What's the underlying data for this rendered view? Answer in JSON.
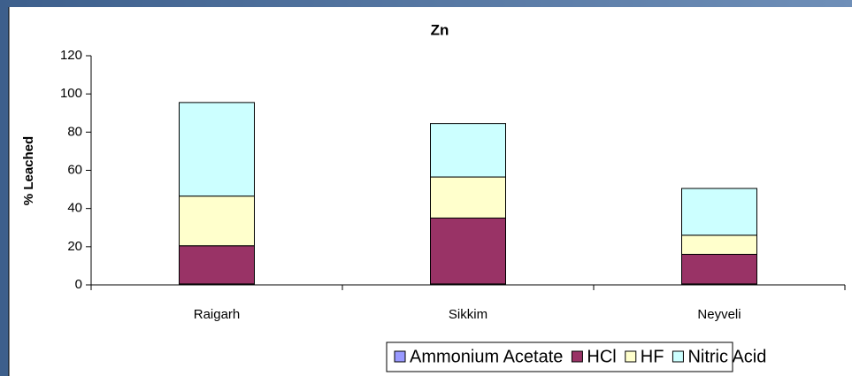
{
  "chart_data": {
    "type": "stacked_bar",
    "title": "Zn",
    "y_label": "% Leached",
    "categories": [
      "Raigarh",
      "Sikkim",
      "Neyveli"
    ],
    "series": [
      {
        "name": "Ammonium Acetate",
        "color": "#9999ff",
        "values": [
          0.5,
          0.5,
          0.5
        ]
      },
      {
        "name": "HCl",
        "color": "#993366",
        "values": [
          20,
          34.5,
          15.5
        ]
      },
      {
        "name": "HF",
        "color": "#ffffcc",
        "values": [
          26,
          21.5,
          10
        ]
      },
      {
        "name": "Nitric Acid",
        "color": "#ccffff",
        "values": [
          49,
          28,
          24.5
        ]
      }
    ],
    "ylim": [
      0,
      120
    ],
    "yticks": [
      0,
      20,
      40,
      60,
      80,
      100,
      120
    ],
    "legend": "bottom"
  }
}
